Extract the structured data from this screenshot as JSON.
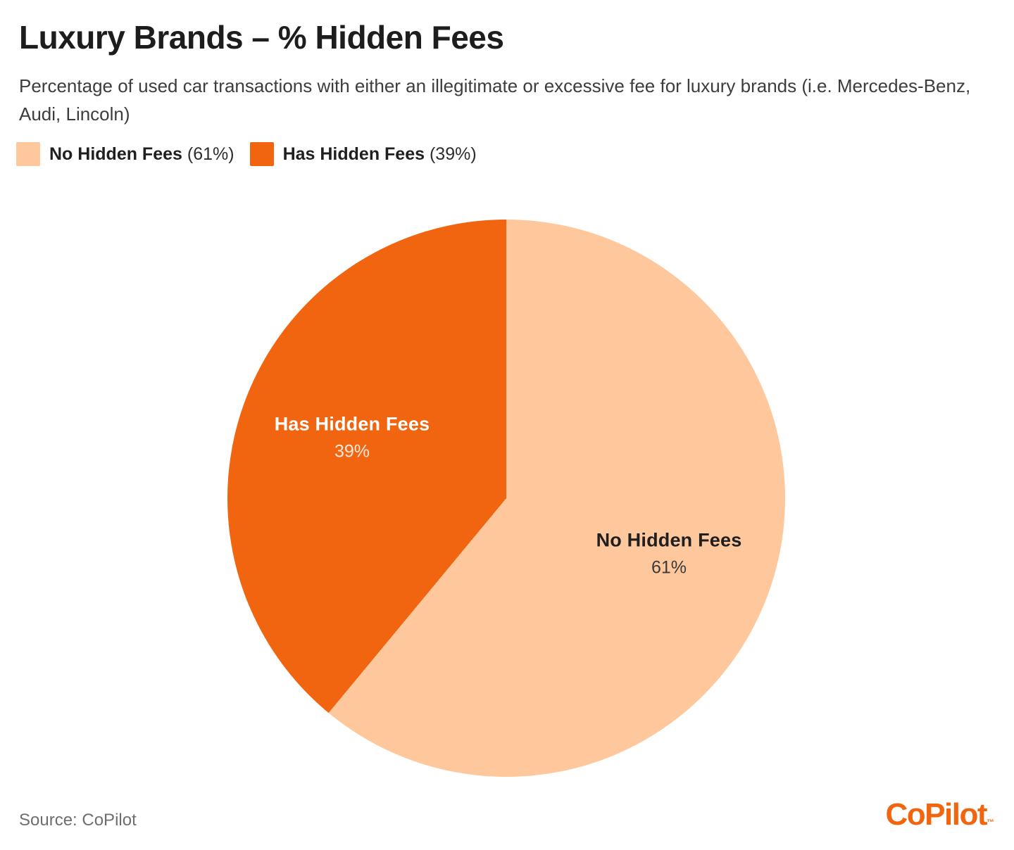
{
  "header": {
    "title": "Luxury Brands – % Hidden Fees",
    "subtitle": "Percentage of used car transactions with either an illegitimate or excessive fee for luxury brands (i.e. Mercedes-Benz, Audi, Lincoln)"
  },
  "chart_data": {
    "type": "pie",
    "title": "Luxury Brands – % Hidden Fees",
    "direction": "clockwise",
    "start_angle_deg": 0,
    "legend_position": "top-left",
    "slices": [
      {
        "label": "No Hidden Fees",
        "value": 61,
        "value_text": "61%",
        "legend_text": "(61%)",
        "color": "#FEC79C",
        "text_color": "#1f1f1f",
        "value_text_color": "#3a3a3a"
      },
      {
        "label": "Has Hidden Fees",
        "value": 39,
        "value_text": "39%",
        "legend_text": "(39%)",
        "color": "#F26510",
        "text_color": "#ffffff",
        "value_text_color": "rgba(255,255,255,0.85)"
      }
    ]
  },
  "footer": {
    "source": "Source: CoPilot",
    "brand": "CoPilot",
    "brand_tm": "™"
  }
}
